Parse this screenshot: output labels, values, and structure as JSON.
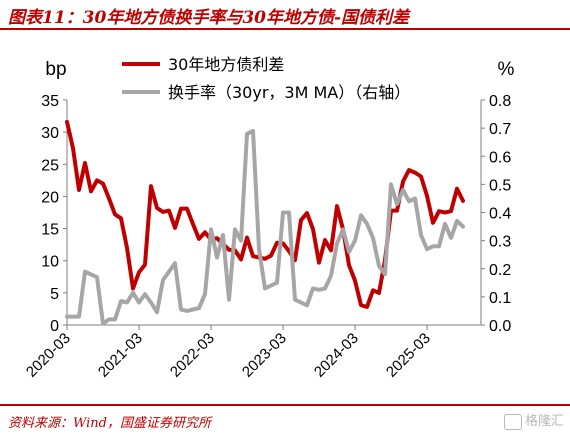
{
  "title": "图表11：30年地方债换手率与30年地方债-国债利差",
  "source": "资料来源：Wind，国盛证券研究所",
  "watermark": "格隆汇",
  "chart_data": {
    "type": "line",
    "left_axis": {
      "label": "bp",
      "ylim": [
        0,
        35
      ],
      "ticks": [
        "0",
        "5",
        "10",
        "15",
        "20",
        "25",
        "30",
        "35"
      ]
    },
    "right_axis": {
      "label": "%",
      "ylim": [
        0.0,
        0.8
      ],
      "ticks": [
        "0.0",
        "0.1",
        "0.2",
        "0.3",
        "0.4",
        "0.5",
        "0.6",
        "0.7",
        "0.8"
      ]
    },
    "x_range": [
      "2020-03",
      "2025-12"
    ],
    "x_ticks": [
      "2020-03",
      "2021-03",
      "2022-03",
      "2023-03",
      "2024-03",
      "2025-03"
    ],
    "series": [
      {
        "name": "30年地方债利差",
        "axis": "left",
        "color": "#c00000",
        "x": [
          "2020-03",
          "2020-04",
          "2020-05",
          "2020-06",
          "2020-07",
          "2020-08",
          "2020-09",
          "2020-10",
          "2020-11",
          "2020-12",
          "2021-01",
          "2021-02",
          "2021-03",
          "2021-04",
          "2021-05",
          "2021-06",
          "2021-07",
          "2021-08",
          "2021-09",
          "2021-10",
          "2021-11",
          "2021-12",
          "2022-01",
          "2022-02",
          "2022-03",
          "2022-04",
          "2022-05",
          "2022-06",
          "2022-07",
          "2022-08",
          "2022-09",
          "2022-10",
          "2022-11",
          "2022-12",
          "2023-01",
          "2023-02",
          "2023-03",
          "2023-04",
          "2023-05",
          "2023-06",
          "2023-07",
          "2023-08",
          "2023-09",
          "2023-10",
          "2023-11",
          "2023-12",
          "2024-01",
          "2024-02",
          "2024-03",
          "2024-04",
          "2024-05",
          "2024-06",
          "2024-07",
          "2024-08",
          "2024-09",
          "2024-10",
          "2024-11",
          "2024-12",
          "2025-01",
          "2025-02",
          "2025-03",
          "2025-04",
          "2025-05",
          "2025-06",
          "2025-07",
          "2025-08",
          "2025-09",
          "2025-10",
          "2025-11"
        ],
        "values": [
          31.6,
          27.5,
          21.0,
          25.2,
          20.8,
          22.5,
          22.0,
          19.7,
          17.2,
          16.6,
          12.0,
          5.7,
          8.2,
          9.4,
          21.6,
          18.2,
          17.6,
          17.8,
          15.1,
          18.1,
          18.1,
          15.7,
          13.4,
          14.4,
          13.3,
          13.5,
          12.6,
          11.7,
          11.6,
          10.2,
          13.6,
          10.7,
          10.5,
          10.3,
          10.8,
          12.8,
          12.7,
          11.5,
          10.1,
          16.3,
          17.4,
          14.9,
          9.7,
          13.2,
          11.6,
          18.5,
          14.9,
          9.3,
          6.9,
          3.1,
          2.8,
          5.4,
          5.0,
          10.1,
          17.8,
          17.8,
          22.3,
          24.1,
          23.7,
          23.1,
          20.1,
          15.9,
          17.7,
          17.5,
          17.7,
          21.2,
          19.3,
          null,
          null
        ]
      },
      {
        "name": "换手率（30yr，3M MA）（右轴）",
        "axis": "right",
        "color": "#a6a6a6",
        "x": [
          "2020-03",
          "2020-04",
          "2020-05",
          "2020-06",
          "2020-07",
          "2020-08",
          "2020-09",
          "2020-10",
          "2020-11",
          "2020-12",
          "2021-01",
          "2021-02",
          "2021-03",
          "2021-04",
          "2021-05",
          "2021-06",
          "2021-07",
          "2021-08",
          "2021-09",
          "2021-10",
          "2021-11",
          "2021-12",
          "2022-01",
          "2022-02",
          "2022-03",
          "2022-04",
          "2022-05",
          "2022-06",
          "2022-07",
          "2022-08",
          "2022-09",
          "2022-10",
          "2022-11",
          "2022-12",
          "2023-01",
          "2023-02",
          "2023-03",
          "2023-04",
          "2023-05",
          "2023-06",
          "2023-07",
          "2023-08",
          "2023-09",
          "2023-10",
          "2023-11",
          "2023-12",
          "2024-01",
          "2024-02",
          "2024-03",
          "2024-04",
          "2024-05",
          "2024-06",
          "2024-07",
          "2024-08",
          "2024-09",
          "2024-10",
          "2024-11",
          "2024-12",
          "2025-01",
          "2025-02",
          "2025-03",
          "2025-04",
          "2025-05",
          "2025-06",
          "2025-07",
          "2025-08",
          "2025-09",
          "2025-10",
          "2025-11"
        ],
        "values": [
          0.03,
          0.03,
          0.03,
          0.19,
          0.18,
          0.17,
          0.005,
          0.02,
          0.02,
          0.085,
          0.08,
          0.115,
          0.08,
          0.11,
          0.08,
          0.045,
          0.16,
          0.19,
          0.22,
          0.055,
          0.05,
          0.055,
          0.06,
          0.11,
          0.34,
          0.24,
          0.32,
          0.09,
          0.34,
          0.3,
          0.68,
          0.69,
          0.27,
          0.13,
          0.14,
          0.15,
          0.4,
          0.4,
          0.09,
          0.08,
          0.07,
          0.13,
          0.125,
          0.13,
          0.175,
          0.29,
          0.34,
          0.26,
          0.3,
          0.39,
          0.36,
          0.31,
          0.21,
          0.18,
          0.5,
          0.43,
          0.48,
          0.44,
          0.45,
          0.32,
          0.27,
          0.28,
          0.28,
          0.36,
          0.31,
          0.37,
          0.35,
          null,
          null
        ]
      }
    ],
    "grid": false,
    "legend_position": "top-left"
  }
}
